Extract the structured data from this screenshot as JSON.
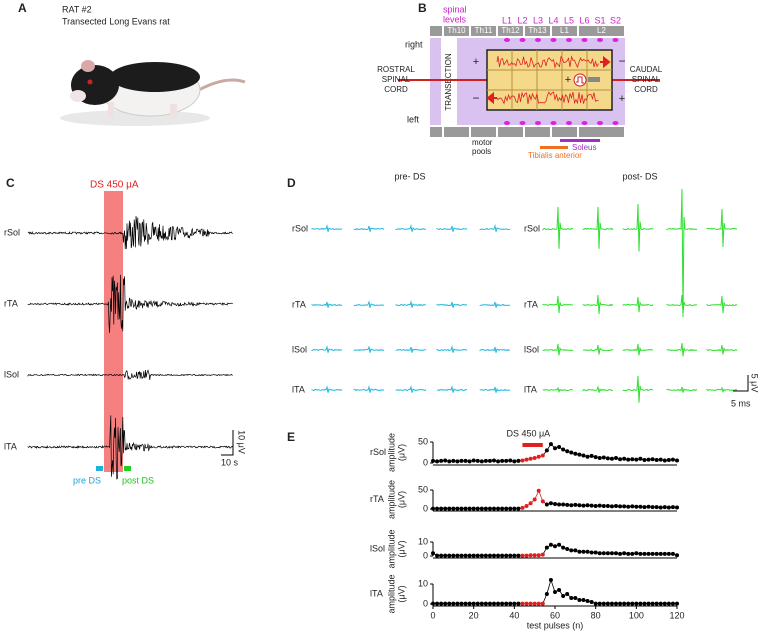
{
  "panel_a": {
    "letter": "A",
    "title": "RAT #2",
    "subtitle": "Transected Long Evans rat"
  },
  "panel_b": {
    "letter": "B",
    "spinal_levels_label": [
      "spinal",
      "levels"
    ],
    "levels": [
      "L1",
      "L2",
      "L3",
      "L4",
      "L5",
      "L6",
      "S1",
      "S2"
    ],
    "vertebrae": [
      "Th10",
      "Th11",
      "Th12",
      "Th13",
      "L1",
      "L2"
    ],
    "right": "right",
    "left": "left",
    "rostral": [
      "ROSTRAL",
      "SPINAL",
      "CORD"
    ],
    "caudal": [
      "CAUDAL",
      "SPINAL",
      "CORD"
    ],
    "transection": "TRANSECTION",
    "motor_pools": [
      "motor",
      "pools"
    ],
    "tibialis": "Tibialis anterior",
    "soleus": "Soleus",
    "plus": "+",
    "minus": "−"
  },
  "panel_c": {
    "letter": "C",
    "stim": "DS 450 μA",
    "muscles": [
      "rSol",
      "rTA",
      "lSol",
      "lTA"
    ],
    "scale_v": "10 μV",
    "scale_t": "10 s",
    "pre": "pre DS",
    "post": "post DS"
  },
  "panel_d": {
    "letter": "D",
    "pre": "pre- DS",
    "post": "post- DS",
    "muscles": [
      "rSol",
      "rTA",
      "lSol",
      "lTA"
    ],
    "scale_v": "5 μV",
    "scale_t": "5 ms"
  },
  "panel_e": {
    "letter": "E",
    "ds_label": "DS 450 μA",
    "ds_range": [
      44,
      54
    ],
    "xlabel": "test pulses (n)",
    "ylabel": [
      "amplitude",
      "(μV)"
    ],
    "xlim": [
      0,
      120
    ],
    "xticks": [
      0,
      20,
      40,
      60,
      80,
      100,
      120
    ],
    "x": [
      0,
      2,
      4,
      6,
      8,
      10,
      12,
      14,
      16,
      18,
      20,
      22,
      24,
      26,
      28,
      30,
      32,
      34,
      36,
      38,
      40,
      42,
      44,
      46,
      48,
      50,
      52,
      54,
      56,
      58,
      60,
      62,
      64,
      66,
      68,
      70,
      72,
      74,
      76,
      78,
      80,
      82,
      84,
      86,
      88,
      90,
      92,
      94,
      96,
      98,
      100,
      102,
      104,
      106,
      108,
      110,
      112,
      114,
      116,
      118,
      120
    ],
    "rows": [
      {
        "name": "rSol",
        "ylim": [
          0,
          50
        ],
        "yticks": [
          0,
          50
        ],
        "values": [
          5,
          4,
          5,
          6,
          4,
          5,
          4,
          5,
          5,
          4,
          6,
          5,
          4,
          5,
          5,
          6,
          4,
          5,
          5,
          6,
          4,
          5,
          6,
          8,
          10,
          12,
          15,
          18,
          30,
          45,
          35,
          38,
          32,
          28,
          25,
          22,
          20,
          18,
          15,
          17,
          14,
          12,
          13,
          11,
          10,
          12,
          9,
          10,
          8,
          9,
          8,
          10,
          7,
          8,
          9,
          7,
          8,
          6,
          7,
          8,
          6
        ]
      },
      {
        "name": "rTA",
        "ylim": [
          0,
          50
        ],
        "yticks": [
          0,
          50
        ],
        "values": [
          1,
          1,
          1,
          1,
          1,
          1,
          1,
          1,
          1,
          1,
          1,
          1,
          1,
          1,
          1,
          1,
          1,
          1,
          1,
          1,
          1,
          1,
          3,
          8,
          15,
          25,
          48,
          20,
          12,
          15,
          13,
          12,
          12,
          11,
          10,
          11,
          10,
          9,
          10,
          9,
          8,
          9,
          8,
          8,
          7,
          8,
          7,
          7,
          6,
          7,
          6,
          6,
          5,
          6,
          5,
          5,
          4,
          5,
          4,
          5,
          4
        ]
      },
      {
        "name": "lSol",
        "ylim": [
          0,
          10
        ],
        "yticks": [
          0,
          10
        ],
        "values": [
          2,
          0.3,
          0.3,
          0.3,
          0.3,
          0.3,
          0.3,
          0.3,
          0.3,
          0.3,
          0.3,
          0.3,
          0.3,
          0.3,
          0.3,
          0.3,
          0.3,
          0.3,
          0.3,
          0.3,
          0.3,
          0.3,
          0.3,
          0.3,
          0.5,
          0.5,
          0.5,
          1,
          6,
          8,
          7,
          8,
          6,
          5,
          4,
          4,
          3,
          3,
          3,
          2.5,
          2.5,
          2,
          2,
          2,
          2,
          2,
          1.5,
          2,
          1.5,
          1.5,
          2,
          1.5,
          1.5,
          1.5,
          1.5,
          1.5,
          1.5,
          1.5,
          1.5,
          1.5,
          0.5
        ]
      },
      {
        "name": "lTA",
        "ylim": [
          0,
          10
        ],
        "yticks": [
          0,
          10
        ],
        "values": [
          0.2,
          0.2,
          0.2,
          0.2,
          0.2,
          0.2,
          0.2,
          0.2,
          0.2,
          0.2,
          0.2,
          0.2,
          0.2,
          0.2,
          0.2,
          0.2,
          0.2,
          0.2,
          0.2,
          0.2,
          0.2,
          0.2,
          0.2,
          0.2,
          0.2,
          0.2,
          0.2,
          0.2,
          5,
          12,
          6,
          7,
          4,
          5,
          3,
          3,
          2,
          2,
          1.5,
          1,
          0.2,
          0.2,
          0.2,
          0.2,
          0.2,
          0.2,
          0.2,
          0.2,
          0.2,
          0.2,
          0.2,
          0.2,
          0.2,
          0.2,
          0.2,
          0.2,
          0.2,
          0.2,
          0.2,
          0.2,
          0.2
        ]
      }
    ]
  }
}
